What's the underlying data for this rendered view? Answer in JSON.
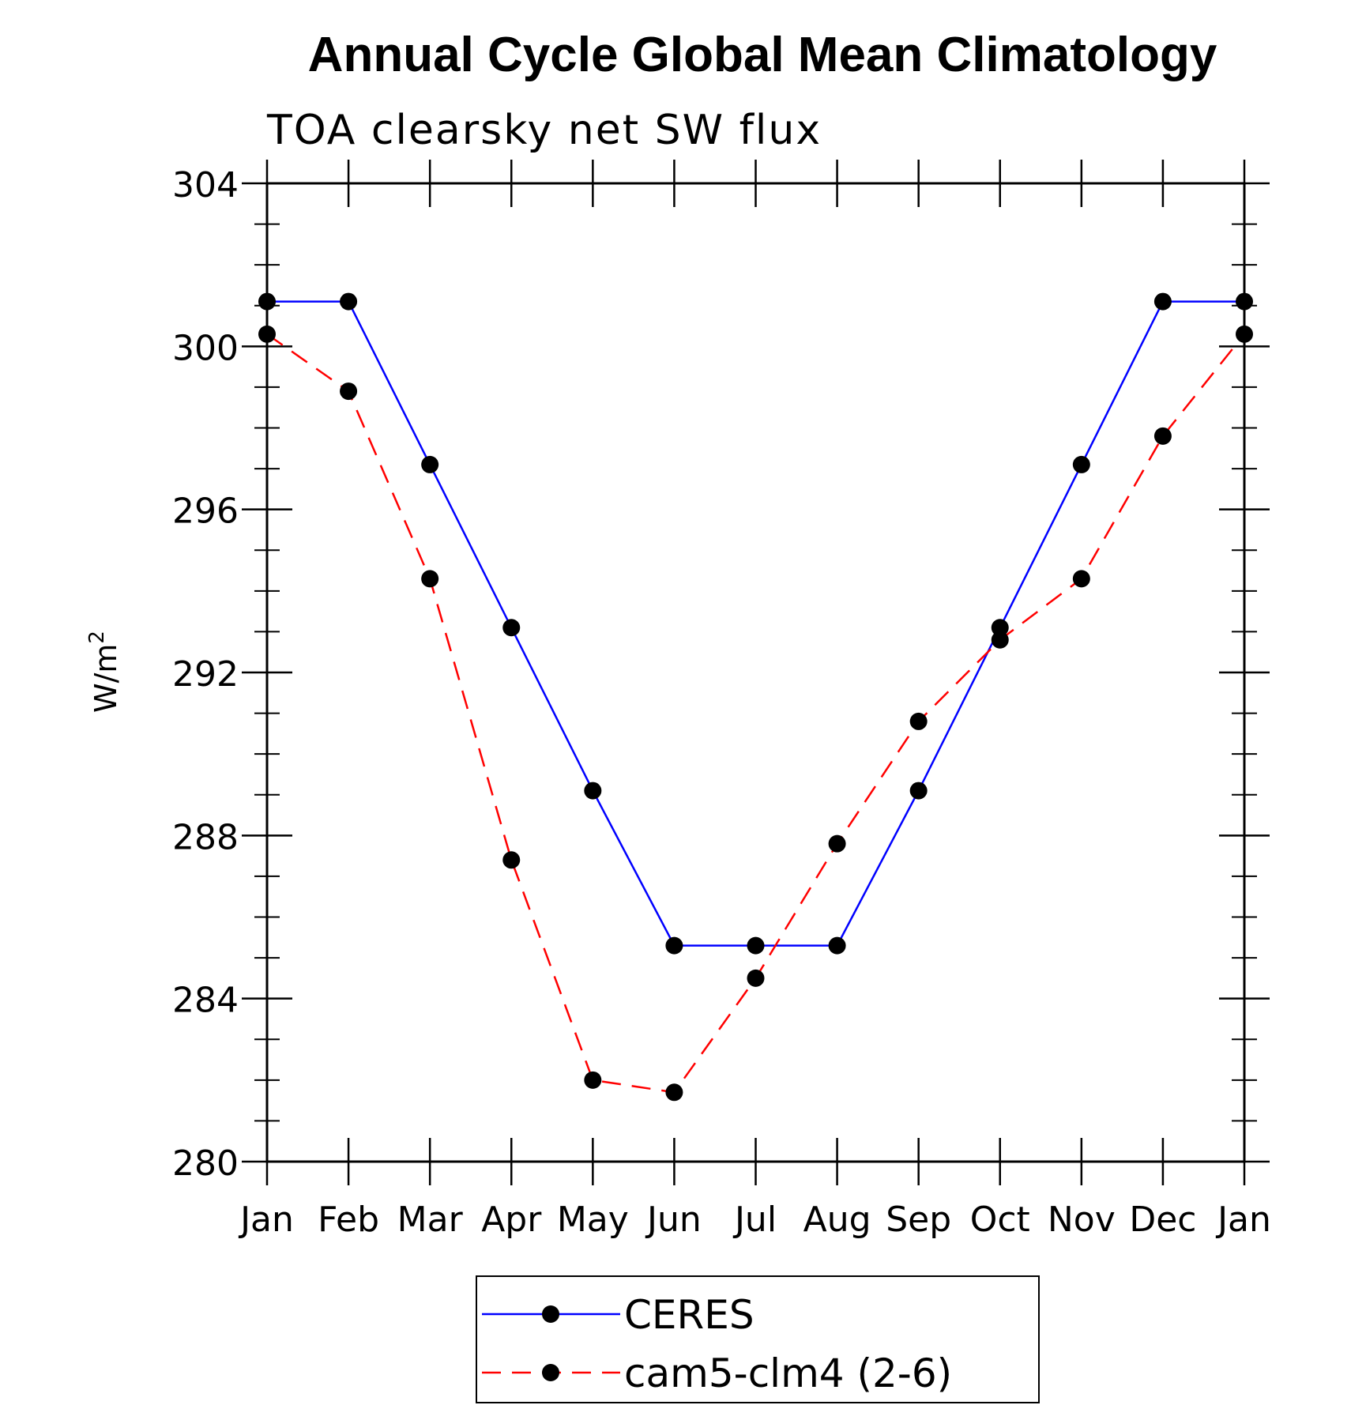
{
  "chart_data": {
    "type": "line",
    "title": "Annual Cycle Global Mean Climatology",
    "subtitle": "TOA clearsky net SW flux",
    "ylabel": "W/m",
    "ylabel_sup": "2",
    "xlabel": "",
    "categories": [
      "Jan",
      "Feb",
      "Mar",
      "Apr",
      "May",
      "Jun",
      "Jul",
      "Aug",
      "Sep",
      "Oct",
      "Nov",
      "Dec",
      "Jan"
    ],
    "ylim": [
      280,
      304
    ],
    "yticks": [
      280,
      284,
      288,
      292,
      296,
      300,
      304
    ],
    "series": [
      {
        "name": "CERES",
        "color": "#0000ff",
        "dash": "solid",
        "marker": "filled-circle",
        "values": [
          301.1,
          301.1,
          297.1,
          293.1,
          289.1,
          285.3,
          285.3,
          285.3,
          289.1,
          293.1,
          297.1,
          301.1,
          301.1
        ]
      },
      {
        "name": "cam5-clm4 (2-6)",
        "color": "#ff0000",
        "dash": "dashed",
        "marker": "filled-circle",
        "values": [
          300.3,
          298.9,
          294.3,
          287.4,
          282.0,
          281.7,
          284.5,
          287.8,
          290.8,
          292.8,
          294.3,
          297.8,
          300.3
        ]
      }
    ],
    "legend_position": "bottom-center",
    "grid": false
  }
}
